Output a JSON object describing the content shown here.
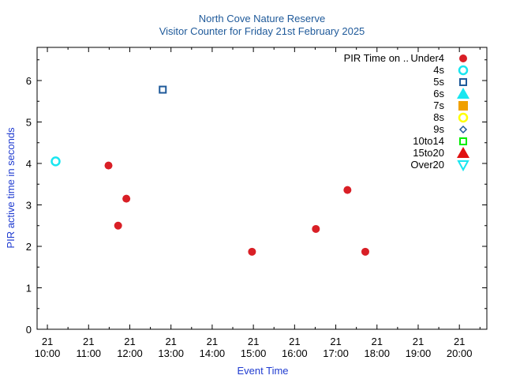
{
  "chart_data": {
    "type": "scatter",
    "title": "North Cove Nature Reserve",
    "subtitle": "Visitor Counter for Friday 21st February 2025",
    "xlabel": "Event Time",
    "ylabel": "PIR active time in seconds",
    "legend_title": "PIR Time on ..",
    "legend_position": "top-right",
    "grid": false,
    "x_range": [
      "21 09:45",
      "21 20:40"
    ],
    "ylim": [
      0,
      6.8
    ],
    "x_ticks": [
      {
        "t": "21 10:00",
        "day": "21",
        "time": "10:00"
      },
      {
        "t": "21 11:00",
        "day": "21",
        "time": "11:00"
      },
      {
        "t": "21 12:00",
        "day": "21",
        "time": "12:00"
      },
      {
        "t": "21 13:00",
        "day": "21",
        "time": "13:00"
      },
      {
        "t": "21 14:00",
        "day": "21",
        "time": "14:00"
      },
      {
        "t": "21 15:00",
        "day": "21",
        "time": "15:00"
      },
      {
        "t": "21 16:00",
        "day": "21",
        "time": "16:00"
      },
      {
        "t": "21 17:00",
        "day": "21",
        "time": "17:00"
      },
      {
        "t": "21 18:00",
        "day": "21",
        "time": "18:00"
      },
      {
        "t": "21 19:00",
        "day": "21",
        "time": "19:00"
      },
      {
        "t": "21 20:00",
        "day": "21",
        "time": "20:00"
      }
    ],
    "y_ticks": [
      0,
      1,
      2,
      3,
      4,
      5,
      6
    ],
    "series": [
      {
        "name": "Under4",
        "marker": "circle-filled",
        "color": "#d91f26",
        "points": [
          {
            "x": "21 11:29",
            "y": 3.95
          },
          {
            "x": "21 11:43",
            "y": 2.5
          },
          {
            "x": "21 11:55",
            "y": 3.15
          },
          {
            "x": "21 14:58",
            "y": 1.87
          },
          {
            "x": "21 16:31",
            "y": 2.42
          },
          {
            "x": "21 17:17",
            "y": 3.36
          },
          {
            "x": "21 17:43",
            "y": 1.87
          }
        ]
      },
      {
        "name": "4s",
        "marker": "circle-open",
        "color": "#19e6f0",
        "points": [
          {
            "x": "21 10:12",
            "y": 4.05
          }
        ]
      },
      {
        "name": "5s",
        "marker": "square-open",
        "color": "#1f5a9a",
        "points": [
          {
            "x": "21 12:48",
            "y": 5.78
          }
        ]
      },
      {
        "name": "6s",
        "marker": "triangle-up-filled",
        "color": "#19e6f0",
        "points": []
      },
      {
        "name": "7s",
        "marker": "square-filled",
        "color": "#f0a000",
        "points": []
      },
      {
        "name": "8s",
        "marker": "circle-open",
        "color": "#ffff00",
        "points": []
      },
      {
        "name": "9s",
        "marker": "diamond-open",
        "color": "#1f5a9a",
        "points": []
      },
      {
        "name": "10to14",
        "marker": "square-open",
        "color": "#00ee00",
        "points": []
      },
      {
        "name": "15to20",
        "marker": "triangle-up-filled",
        "color": "#e01010",
        "points": []
      },
      {
        "name": "Over20",
        "marker": "triangle-down-open",
        "color": "#19e6f0",
        "points": []
      }
    ]
  }
}
